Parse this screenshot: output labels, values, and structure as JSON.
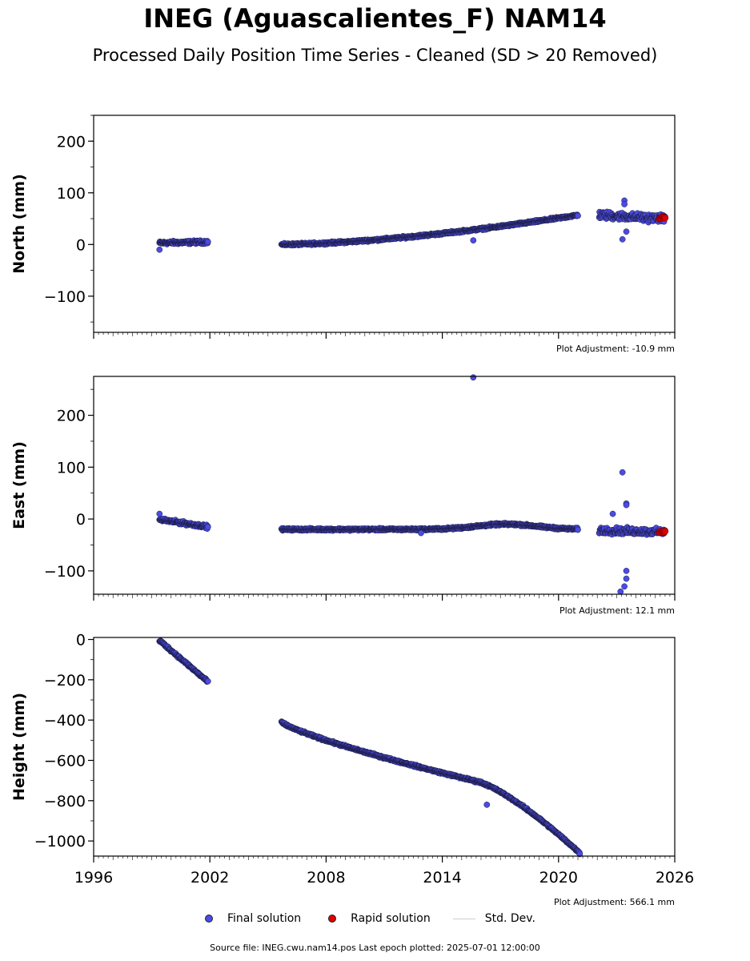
{
  "chart_data": {
    "type": "scatter",
    "title": "INEG (Aguascalientes_F) NAM14",
    "subtitle": "Processed Daily Position Time Series - Cleaned (SD > 20 Removed)",
    "xlim": [
      1996,
      2026
    ],
    "x_ticks": [
      "1996",
      "2002",
      "2008",
      "2014",
      "2020",
      "2026"
    ],
    "grid": false,
    "legend": {
      "placement": "bottom-center",
      "items": [
        {
          "label": "Final solution",
          "color": "#4b4be6",
          "marker": "circle"
        },
        {
          "label": "Rapid solution",
          "color": "#dd0000",
          "marker": "circle"
        },
        {
          "label": "Std. Dev.",
          "color": "#cccccc",
          "marker": "line"
        }
      ]
    },
    "panels": [
      {
        "ylabel": "North (mm)",
        "ylim": [
          -170,
          250
        ],
        "y_ticks": [
          200,
          100,
          0,
          -100
        ],
        "y_tick_labels": [
          "200",
          "100",
          "0",
          "−100"
        ],
        "adjustment": "Plot Adjustment: -10.9 mm",
        "segments": [
          {
            "x0": 1999.4,
            "x1": 2001.9,
            "y0": 3,
            "y1": 5,
            "noise": 3
          },
          {
            "x0": 2005.7,
            "x1": 2021.0,
            "y0": 0,
            "y1": 57,
            "noise": 2,
            "curve": 1.6
          },
          {
            "x0": 2022.1,
            "x1": 2025.5,
            "y0": 57,
            "y1": 50,
            "noise": 7
          }
        ],
        "rapid": {
          "x0": 2025.2,
          "x1": 2025.5,
          "y": 52
        },
        "outliers": [
          [
            1999.4,
            -10
          ],
          [
            2015.6,
            8
          ],
          [
            2023.4,
            85
          ],
          [
            2023.4,
            78
          ],
          [
            2023.3,
            10
          ],
          [
            2023.5,
            25
          ]
        ]
      },
      {
        "ylabel": "East (mm)",
        "ylim": [
          -145,
          275
        ],
        "y_ticks": [
          200,
          100,
          0,
          -100
        ],
        "y_tick_labels": [
          "200",
          "100",
          "0",
          "−100"
        ],
        "adjustment": "Plot Adjustment: 12.1 mm",
        "segments": [
          {
            "x0": 1999.4,
            "x1": 2001.9,
            "y0": -1,
            "y1": -15,
            "noise": 3
          },
          {
            "x0": 2005.7,
            "x1": 2021.0,
            "y0": -20,
            "y1": -20,
            "noise": 2,
            "bump": 10,
            "bump_center": 2017.3
          },
          {
            "x0": 2022.1,
            "x1": 2025.5,
            "y0": -22,
            "y1": -25,
            "noise": 6
          }
        ],
        "rapid": {
          "x0": 2025.2,
          "x1": 2025.5,
          "y": -25
        },
        "outliers": [
          [
            2015.6,
            273
          ],
          [
            2023.3,
            90
          ],
          [
            2023.5,
            30
          ],
          [
            2023.5,
            27
          ],
          [
            2022.8,
            10
          ],
          [
            2023.2,
            -140
          ],
          [
            2023.5,
            -100
          ],
          [
            2023.5,
            -115
          ],
          [
            2023.4,
            -130
          ],
          [
            2012.9,
            -27
          ],
          [
            1999.4,
            10
          ]
        ]
      },
      {
        "ylabel": "Height (mm)",
        "ylim": [
          -1075,
          10
        ],
        "y_ticks": [
          0,
          -200,
          -400,
          -600,
          -800,
          -1000
        ],
        "y_tick_labels": [
          "0",
          "−200",
          "−400",
          "−600",
          "−800",
          "−1000"
        ],
        "adjustment": "Plot Adjustment: 566.1 mm",
        "segments": [
          {
            "x0": 1999.4,
            "x1": 2001.9,
            "y0": -5,
            "y1": -210,
            "noise": 6
          },
          {
            "x0": 2005.7,
            "x1": 2015.8,
            "y0": -410,
            "y1": -705,
            "noise": 5,
            "curve": 0.8
          },
          {
            "x0": 2015.8,
            "x1": 2021.1,
            "y0": -705,
            "y1": -1060,
            "noise": 5,
            "curve": 1.3
          }
        ],
        "outliers": [
          [
            2016.3,
            -820
          ]
        ]
      }
    ]
  },
  "footer": "Source file: INEG.cwu.nam14.pos  Last epoch plotted: 2025-07-01 12:00:00"
}
